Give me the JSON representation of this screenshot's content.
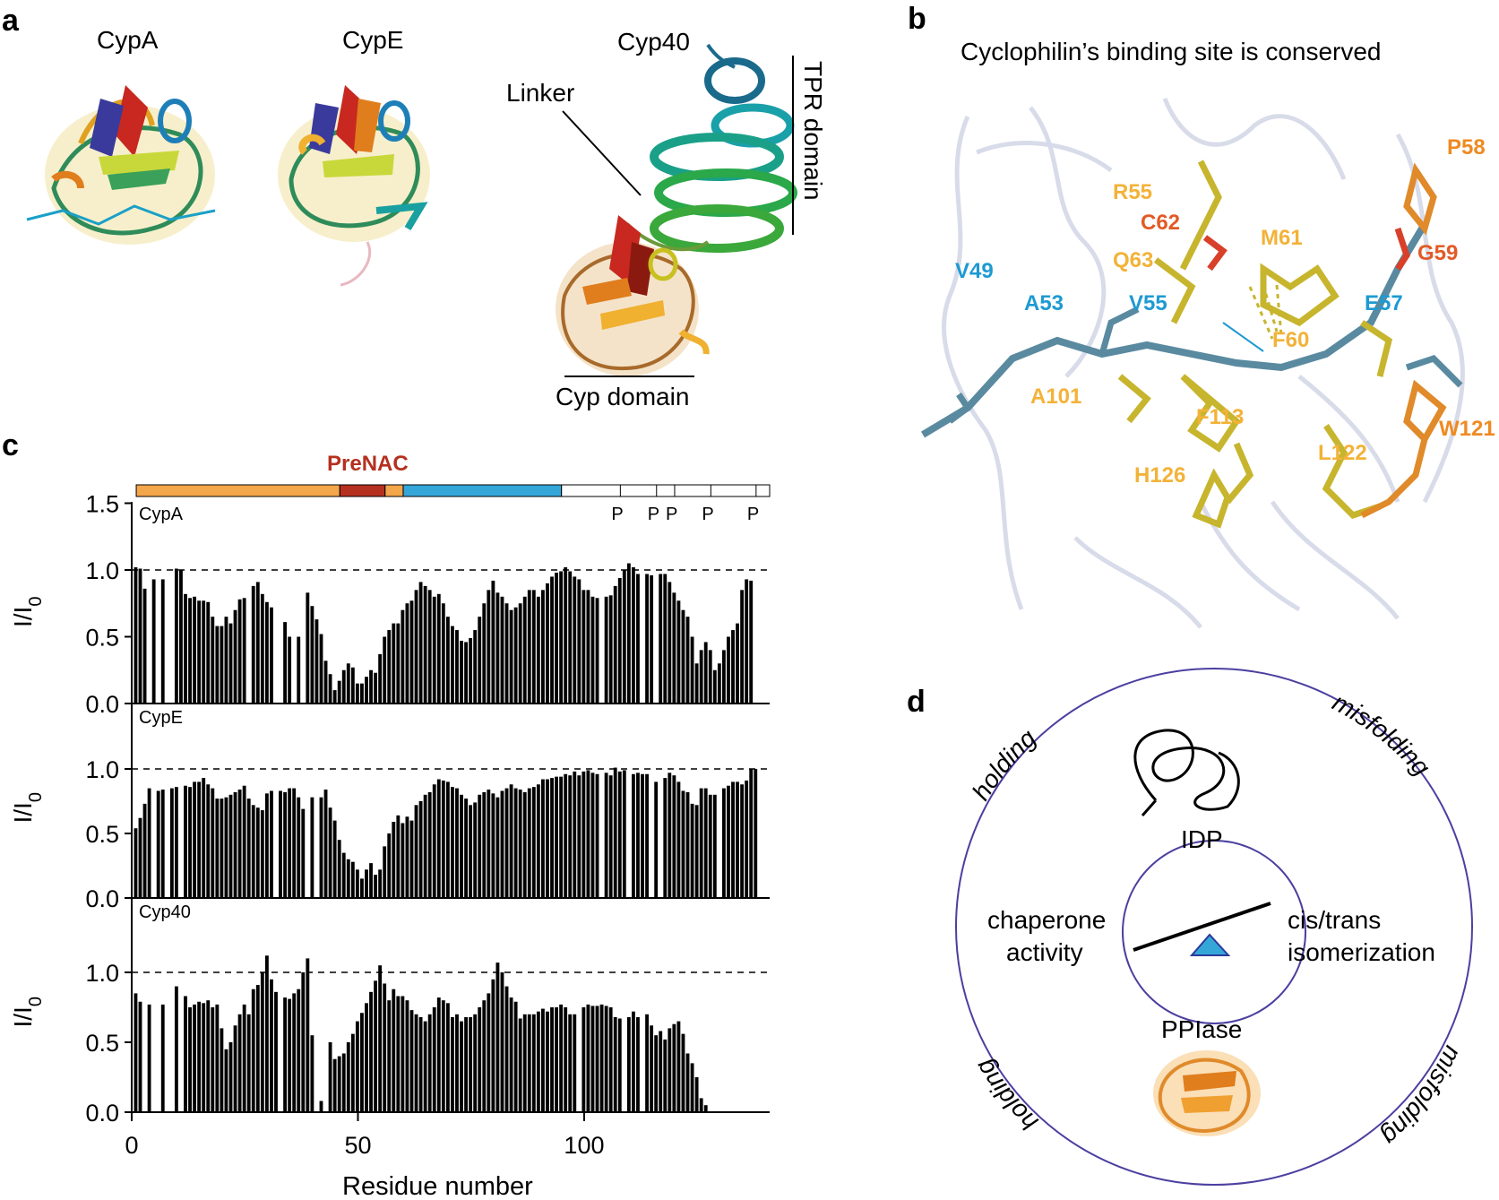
{
  "panels": {
    "a": {
      "label": "a",
      "structures": [
        {
          "name": "CypA"
        },
        {
          "name": "CypE"
        },
        {
          "name": "Cyp40"
        }
      ],
      "annotations": {
        "linker": "Linker",
        "tpr_domain": "TPR domain",
        "cyp_domain": "Cyp domain"
      }
    },
    "b": {
      "label": "b",
      "title": "Cyclophilin’s binding site is conserved",
      "residues": [
        {
          "id": "V49",
          "color": "#1d9ad2"
        },
        {
          "id": "A53",
          "color": "#1d9ad2"
        },
        {
          "id": "V55",
          "color": "#1d9ad2"
        },
        {
          "id": "E57",
          "color": "#1d9ad2"
        },
        {
          "id": "R55",
          "color": "#f3b238"
        },
        {
          "id": "C62",
          "color": "#e25a26"
        },
        {
          "id": "Q63",
          "color": "#f3b238"
        },
        {
          "id": "M61",
          "color": "#f3b238"
        },
        {
          "id": "P58",
          "color": "#ef8a21"
        },
        {
          "id": "G59",
          "color": "#e25a26"
        },
        {
          "id": "F60",
          "color": "#f3b238"
        },
        {
          "id": "A101",
          "color": "#f3b238"
        },
        {
          "id": "F113",
          "color": "#f3b238"
        },
        {
          "id": "W121",
          "color": "#ef8a21"
        },
        {
          "id": "L122",
          "color": "#f3b238"
        },
        {
          "id": "H126",
          "color": "#f3b238"
        }
      ]
    },
    "d": {
      "label": "d",
      "center_top": "IDP",
      "center_bottom": "PPIase",
      "left_text": [
        "chaperone",
        "activity"
      ],
      "right_text": [
        "cis/trans",
        "isomerization"
      ],
      "arc_labels": {
        "top_left": "holding",
        "top_right": "misfolding",
        "bottom_left": "holding",
        "bottom_right": "misfolding"
      }
    }
  },
  "chart_data": {
    "panel_label": "c",
    "type": "bar",
    "xlabel": "Residue number",
    "ylabel": "I/I0",
    "xlim": [
      0,
      141
    ],
    "ylim": [
      0,
      1.5
    ],
    "x_ticks": [
      0,
      50,
      100
    ],
    "y_ticks": [
      "0.0",
      "0.5",
      "1.0",
      "1.5"
    ],
    "reference_line": 1.0,
    "domain_bar": {
      "label": "PreNAC",
      "segments": [
        {
          "start": 1,
          "end": 46,
          "color": "#f4a64b"
        },
        {
          "start": 46,
          "end": 56,
          "color": "#b5301f"
        },
        {
          "start": 56,
          "end": 60,
          "color": "#f4a64b"
        },
        {
          "start": 60,
          "end": 95,
          "color": "#35a6d8"
        },
        {
          "start": 95,
          "end": 141,
          "color": "#ffffff"
        }
      ],
      "prolines": [
        108,
        116,
        120,
        128,
        138
      ],
      "proline_label": "P"
    },
    "series": [
      {
        "name": "CypA",
        "values": [
          1.02,
          1.01,
          0.86,
          0,
          0.93,
          0,
          0.93,
          0,
          0,
          1.01,
          1.0,
          0.82,
          0.79,
          0.8,
          0.77,
          0.77,
          0.76,
          0.65,
          0.58,
          0.58,
          0.65,
          0.6,
          0.7,
          0.78,
          0.79,
          0,
          0.88,
          0.91,
          0.82,
          0.76,
          0.72,
          0,
          0,
          0.61,
          0.5,
          0,
          0.5,
          0,
          0.83,
          0.73,
          0.63,
          0.52,
          0.32,
          0.22,
          0.1,
          0.17,
          0.25,
          0.3,
          0.27,
          0.15,
          0.15,
          0.2,
          0.25,
          0.23,
          0.37,
          0.5,
          0.55,
          0.6,
          0.6,
          0.7,
          0.75,
          0.77,
          0.85,
          0.91,
          0.88,
          0.85,
          0.8,
          0.82,
          0.75,
          0.65,
          0.58,
          0.55,
          0.47,
          0.46,
          0.49,
          0.55,
          0.65,
          0.75,
          0.85,
          0.92,
          0.83,
          0.8,
          0.75,
          0.7,
          0.72,
          0.75,
          0.8,
          0.85,
          0.85,
          0.8,
          0.85,
          0.9,
          0.95,
          0.98,
          0.99,
          1.02,
          0.99,
          0.95,
          0.93,
          0.85,
          0.85,
          0.8,
          0.79,
          0,
          0.8,
          0.81,
          0.88,
          0.94,
          1.0,
          1.05,
          1.02,
          0.97,
          0,
          0.97,
          0.96,
          0,
          0.97,
          0.97,
          0.91,
          0.83,
          0.77,
          0.7,
          0.65,
          0.5,
          0.3,
          0.4,
          0.46,
          0.4,
          0.25,
          0.3,
          0.4,
          0.5,
          0.55,
          0.6,
          0.85,
          0.93,
          0.92
        ],
        "hidden_values_note": ""
      },
      {
        "name": "CypE",
        "values": [
          0.54,
          0.62,
          0.73,
          0.85,
          0,
          0.83,
          0.84,
          0,
          0.85,
          0.86,
          0,
          0.87,
          0.86,
          0.9,
          0.9,
          0.93,
          0.88,
          0.85,
          0.77,
          0.77,
          0.78,
          0.8,
          0.82,
          0.84,
          0.87,
          0.77,
          0.72,
          0.7,
          0.68,
          0.81,
          0.83,
          0,
          0.83,
          0.82,
          0.85,
          0.85,
          0.78,
          0.69,
          0,
          0.78,
          0,
          0.78,
          0.84,
          0.7,
          0.6,
          0.45,
          0.35,
          0.3,
          0.28,
          0.22,
          0.15,
          0.22,
          0.27,
          0.18,
          0.22,
          0.4,
          0.5,
          0.59,
          0.64,
          0.58,
          0.63,
          0.6,
          0.72,
          0.75,
          0.8,
          0.82,
          0.88,
          0.92,
          0.91,
          0.9,
          0.86,
          0.85,
          0.8,
          0.77,
          0.72,
          0.74,
          0.8,
          0.82,
          0.84,
          0.81,
          0.78,
          0.83,
          0.85,
          0.88,
          0.85,
          0.84,
          0.82,
          0.85,
          0.86,
          0.88,
          0.92,
          0.92,
          0.93,
          0.94,
          0.94,
          0.96,
          0.95,
          0.98,
          0.95,
          0.98,
          0.99,
          0.97,
          0.96,
          0,
          0.97,
          0.95,
          1.01,
          0.98,
          0.99,
          0,
          0.96,
          0.97,
          0.96,
          0.96,
          0,
          0.9,
          0,
          0.93,
          0.97,
          0.95,
          0.9,
          0.83,
          0.82,
          0.73,
          0.72,
          0.85,
          0.85,
          0.8,
          0.8,
          0,
          0.85,
          0.87,
          0.9,
          0.9,
          0.88,
          0.91,
          1.0,
          1.0
        ],
        "hidden_values_note": ""
      },
      {
        "name": "Cyp40",
        "values": [
          0.85,
          0.79,
          0,
          0.77,
          0,
          0,
          0.77,
          0,
          0,
          0.9,
          0,
          0.83,
          0.75,
          0.77,
          0.79,
          0.78,
          0.8,
          0.75,
          0.77,
          0.6,
          0.45,
          0.5,
          0.62,
          0.7,
          0.77,
          0.7,
          0.88,
          0.91,
          1.0,
          1.12,
          0.95,
          0.86,
          0,
          0.82,
          0.81,
          0.85,
          0.88,
          1.0,
          1.1,
          0.55,
          0,
          0.08,
          0,
          0.5,
          0.38,
          0.4,
          0.42,
          0.5,
          0.56,
          0.65,
          0.71,
          0.78,
          0.86,
          0.94,
          1.05,
          0.92,
          0.8,
          0.88,
          0.83,
          0.83,
          0.8,
          0.73,
          0.7,
          0.68,
          0.65,
          0.7,
          0.75,
          0.82,
          0.8,
          0.78,
          0.68,
          0.7,
          0.65,
          0.68,
          0.68,
          0.7,
          0.75,
          0.8,
          0.85,
          0.95,
          1.07,
          1.0,
          0.9,
          0.82,
          0.79,
          0.67,
          0.7,
          0.7,
          0.7,
          0.72,
          0.74,
          0.72,
          0.75,
          0.75,
          0.77,
          0.75,
          0.7,
          0.7,
          0,
          0.75,
          0.77,
          0.76,
          0.76,
          0.77,
          0.76,
          0.75,
          0.68,
          0.67,
          0,
          0.68,
          0.72,
          0.68,
          0,
          0.7,
          0.62,
          0.55,
          0.58,
          0.52,
          0.6,
          0.63,
          0.65,
          0.56,
          0.42,
          0.35,
          0.25,
          0.1,
          0.05,
          0,
          0,
          0,
          0,
          0,
          0,
          0,
          0,
          0,
          0,
          0,
          0,
          0,
          0,
          0
        ],
        "hidden_values_note": ""
      }
    ]
  }
}
